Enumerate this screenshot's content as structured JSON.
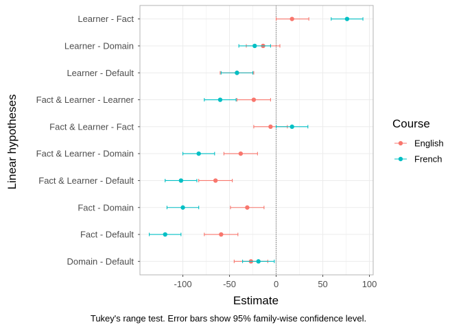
{
  "chart_data": {
    "type": "scatter",
    "xlabel": "Estimate",
    "ylabel": "Linear hypotheses",
    "caption": "Tukey's range test. Error bars show 95% family-wise confidence level.",
    "xlim": [
      -146,
      104
    ],
    "x_ticks": [
      -100,
      -50,
      0,
      50,
      100
    ],
    "x_tick_labels": [
      "-100",
      "-50",
      "0",
      "50",
      "100"
    ],
    "reference_line_x": 0,
    "grid": true,
    "categories": [
      "Learner - Fact",
      "Learner - Domain",
      "Learner - Default",
      "Fact & Learner - Learner",
      "Fact & Learner - Fact",
      "Fact & Learner - Domain",
      "Fact & Learner - Default",
      "Fact - Domain",
      "Fact - Default",
      "Domain - Default"
    ],
    "legend": {
      "title": "Course",
      "position": "right"
    },
    "series": [
      {
        "name": "English",
        "color": "#F8766D",
        "estimate": [
          17,
          -14,
          -42,
          -24,
          -6,
          -38,
          -65,
          -31,
          -59,
          -27
        ],
        "lower": [
          0,
          -32,
          -60,
          -42,
          -24,
          -56,
          -83,
          -49,
          -77,
          -45
        ],
        "upper": [
          35,
          4,
          -24,
          -6,
          12,
          -20,
          -47,
          -13,
          -41,
          -9
        ]
      },
      {
        "name": "French",
        "color": "#00BFC4",
        "estimate": [
          76,
          -23,
          -42,
          -60,
          17,
          -83,
          -102,
          -100,
          -119,
          -19
        ],
        "lower": [
          59,
          -40,
          -59,
          -77,
          0,
          -100,
          -119,
          -117,
          -136,
          -36
        ],
        "upper": [
          93,
          -6,
          -25,
          -43,
          34,
          -66,
          -85,
          -83,
          -102,
          -2
        ]
      }
    ]
  }
}
